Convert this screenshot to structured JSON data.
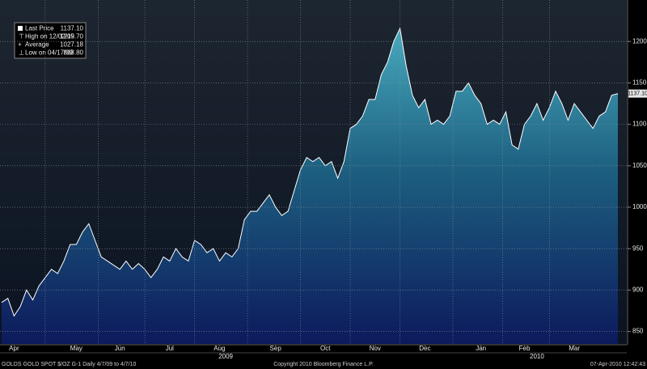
{
  "chart_data": {
    "type": "area",
    "legend": [
      {
        "label": "Last Price",
        "value": "1137.10"
      },
      {
        "label": "High on 12/02/09",
        "value": "1215.70"
      },
      {
        "label": "Average",
        "value": "1027.18"
      },
      {
        "label": "Low on 04/17/09",
        "value": "868.80"
      }
    ],
    "values": [
      885,
      890,
      868.8,
      880,
      900,
      888,
      905,
      915,
      925,
      920,
      935,
      955,
      955,
      970,
      980,
      960,
      940,
      935,
      930,
      925,
      935,
      925,
      932,
      925,
      915,
      925,
      940,
      935,
      950,
      940,
      935,
      960,
      955,
      945,
      950,
      935,
      945,
      940,
      950,
      985,
      995,
      995,
      1005,
      1015,
      1000,
      990,
      995,
      1020,
      1045,
      1060,
      1055,
      1060,
      1050,
      1055,
      1035,
      1055,
      1095,
      1100,
      1110,
      1130,
      1130,
      1160,
      1175,
      1200,
      1215.7,
      1170,
      1135,
      1120,
      1130,
      1100,
      1105,
      1100,
      1110,
      1140,
      1140,
      1150,
      1135,
      1125,
      1100,
      1105,
      1100,
      1115,
      1075,
      1070,
      1100,
      1110,
      1125,
      1105,
      1120,
      1140,
      1125,
      1105,
      1125,
      1115,
      1105,
      1095,
      1110,
      1115,
      1135,
      1137.1
    ],
    "color": "#ffffff",
    "ylim": [
      835,
      1250
    ],
    "yticks": [
      850,
      900,
      950,
      1000,
      1050,
      1100,
      1150,
      1200
    ],
    "xticks": [
      {
        "value": 2,
        "label": "Apr"
      },
      {
        "value": 12,
        "label": "May"
      },
      {
        "value": 19,
        "label": "Jun"
      },
      {
        "value": 27,
        "label": "Jul"
      },
      {
        "value": 35,
        "label": "Aug"
      },
      {
        "value": 44,
        "label": "Sep"
      },
      {
        "value": 52,
        "label": "Oct"
      },
      {
        "value": 60,
        "label": "Nov"
      },
      {
        "value": 68,
        "label": "Dec"
      },
      {
        "value": 77,
        "label": "Jan"
      },
      {
        "value": 84,
        "label": "Feb"
      },
      {
        "value": 92,
        "label": "Mar"
      }
    ],
    "year_ticks": [
      {
        "value": 36,
        "label": "2009"
      },
      {
        "value": 86,
        "label": "2010"
      }
    ],
    "grid": true,
    "footer": {
      "left": "GOLDS GOLD SPOT $/OZ   G-1   Daily  4/7/09 to 4/7/10",
      "center": "Copyright 2010 Bloomberg Finance L.P.",
      "right": "07-Apr-2010 12:42:43"
    }
  }
}
